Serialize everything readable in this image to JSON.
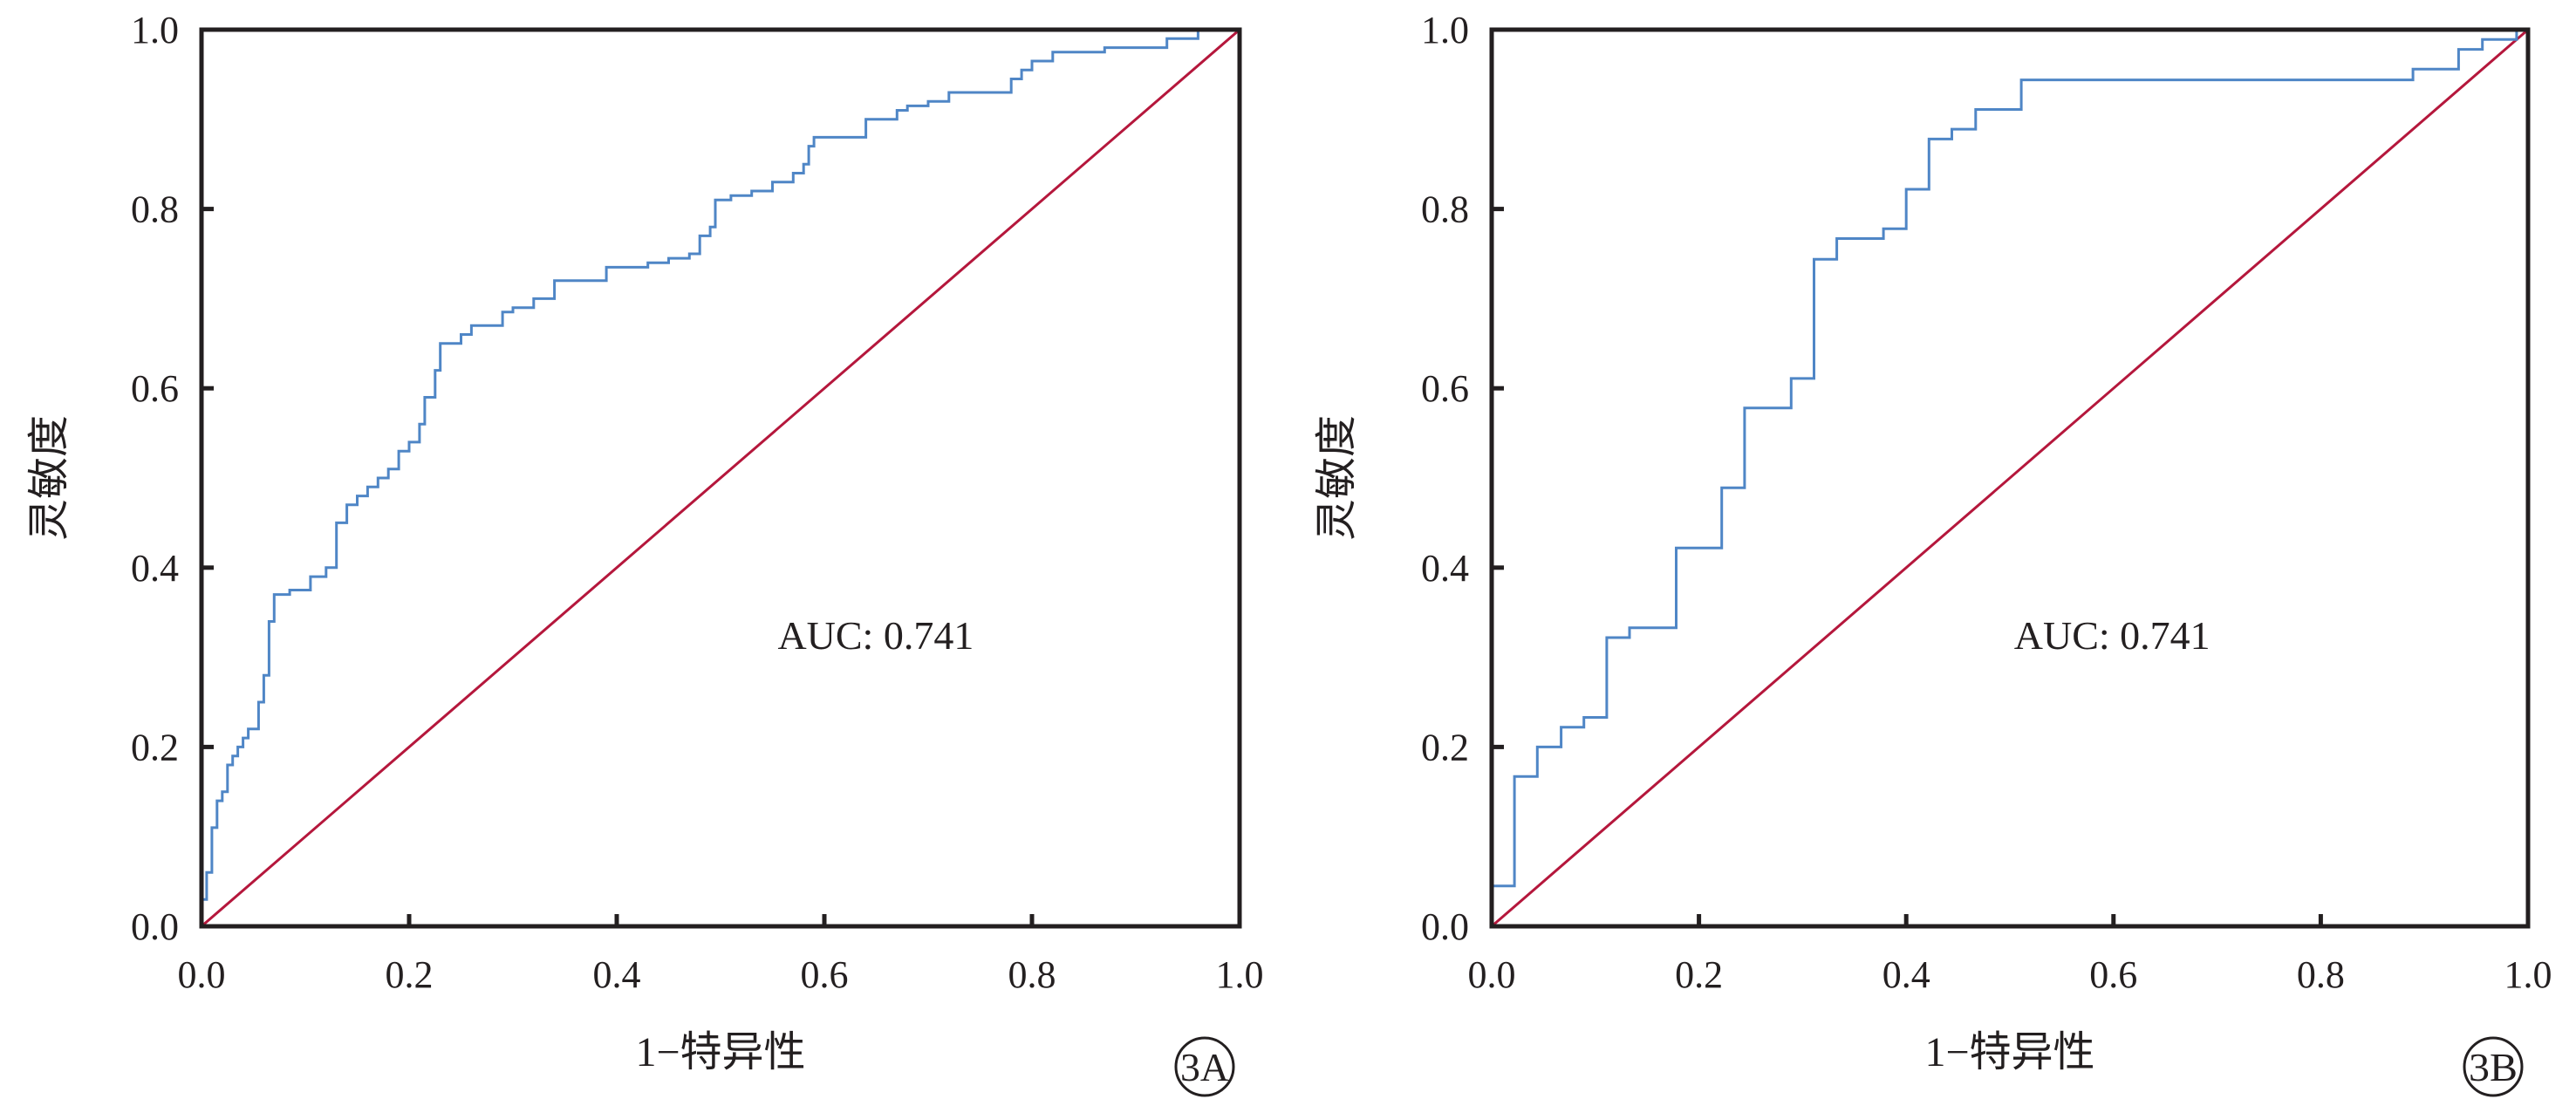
{
  "chart_data": [
    {
      "type": "line",
      "panel": "3A",
      "xlabel": "1−特异性",
      "ylabel": "灵敏度",
      "xlim": [
        0.0,
        1.0
      ],
      "ylim": [
        0.0,
        1.0
      ],
      "xticks": [
        "0.0",
        "0.2",
        "0.4",
        "0.6",
        "0.8",
        "1.0"
      ],
      "yticks": [
        "0.0",
        "0.2",
        "0.4",
        "0.6",
        "0.8",
        "1.0"
      ],
      "annotation": "AUC: 0.741",
      "grid": false,
      "colors": {
        "roc": "#4f86c6",
        "reference": "#b5173c",
        "frame": "#231f20"
      },
      "series": [
        {
          "role": "roc",
          "step": true,
          "points": [
            [
              0.0,
              0.0
            ],
            [
              0.0,
              0.03
            ],
            [
              0.005,
              0.03
            ],
            [
              0.005,
              0.06
            ],
            [
              0.01,
              0.06
            ],
            [
              0.01,
              0.11
            ],
            [
              0.015,
              0.11
            ],
            [
              0.015,
              0.14
            ],
            [
              0.02,
              0.14
            ],
            [
              0.02,
              0.15
            ],
            [
              0.025,
              0.15
            ],
            [
              0.025,
              0.18
            ],
            [
              0.03,
              0.18
            ],
            [
              0.03,
              0.19
            ],
            [
              0.035,
              0.19
            ],
            [
              0.035,
              0.2
            ],
            [
              0.04,
              0.2
            ],
            [
              0.04,
              0.21
            ],
            [
              0.045,
              0.21
            ],
            [
              0.045,
              0.22
            ],
            [
              0.055,
              0.22
            ],
            [
              0.055,
              0.25
            ],
            [
              0.06,
              0.25
            ],
            [
              0.06,
              0.28
            ],
            [
              0.065,
              0.28
            ],
            [
              0.065,
              0.34
            ],
            [
              0.07,
              0.34
            ],
            [
              0.07,
              0.37
            ],
            [
              0.085,
              0.37
            ],
            [
              0.085,
              0.375
            ],
            [
              0.105,
              0.375
            ],
            [
              0.105,
              0.39
            ],
            [
              0.12,
              0.39
            ],
            [
              0.12,
              0.4
            ],
            [
              0.13,
              0.4
            ],
            [
              0.13,
              0.45
            ],
            [
              0.14,
              0.45
            ],
            [
              0.14,
              0.47
            ],
            [
              0.15,
              0.47
            ],
            [
              0.15,
              0.48
            ],
            [
              0.16,
              0.48
            ],
            [
              0.16,
              0.49
            ],
            [
              0.17,
              0.49
            ],
            [
              0.17,
              0.5
            ],
            [
              0.18,
              0.5
            ],
            [
              0.18,
              0.51
            ],
            [
              0.19,
              0.51
            ],
            [
              0.19,
              0.53
            ],
            [
              0.2,
              0.53
            ],
            [
              0.2,
              0.54
            ],
            [
              0.21,
              0.54
            ],
            [
              0.21,
              0.56
            ],
            [
              0.215,
              0.56
            ],
            [
              0.215,
              0.59
            ],
            [
              0.225,
              0.59
            ],
            [
              0.225,
              0.62
            ],
            [
              0.23,
              0.62
            ],
            [
              0.23,
              0.65
            ],
            [
              0.25,
              0.65
            ],
            [
              0.25,
              0.66
            ],
            [
              0.26,
              0.66
            ],
            [
              0.26,
              0.67
            ],
            [
              0.29,
              0.67
            ],
            [
              0.29,
              0.685
            ],
            [
              0.3,
              0.685
            ],
            [
              0.3,
              0.69
            ],
            [
              0.32,
              0.69
            ],
            [
              0.32,
              0.7
            ],
            [
              0.34,
              0.7
            ],
            [
              0.34,
              0.72
            ],
            [
              0.39,
              0.72
            ],
            [
              0.39,
              0.735
            ],
            [
              0.43,
              0.735
            ],
            [
              0.43,
              0.74
            ],
            [
              0.45,
              0.74
            ],
            [
              0.45,
              0.745
            ],
            [
              0.47,
              0.745
            ],
            [
              0.47,
              0.75
            ],
            [
              0.48,
              0.75
            ],
            [
              0.48,
              0.77
            ],
            [
              0.49,
              0.77
            ],
            [
              0.49,
              0.78
            ],
            [
              0.495,
              0.78
            ],
            [
              0.495,
              0.81
            ],
            [
              0.51,
              0.81
            ],
            [
              0.51,
              0.815
            ],
            [
              0.53,
              0.815
            ],
            [
              0.53,
              0.82
            ],
            [
              0.55,
              0.82
            ],
            [
              0.55,
              0.83
            ],
            [
              0.57,
              0.83
            ],
            [
              0.57,
              0.84
            ],
            [
              0.58,
              0.84
            ],
            [
              0.58,
              0.85
            ],
            [
              0.585,
              0.85
            ],
            [
              0.585,
              0.87
            ],
            [
              0.59,
              0.87
            ],
            [
              0.59,
              0.88
            ],
            [
              0.64,
              0.88
            ],
            [
              0.64,
              0.9
            ],
            [
              0.67,
              0.9
            ],
            [
              0.67,
              0.91
            ],
            [
              0.68,
              0.91
            ],
            [
              0.68,
              0.915
            ],
            [
              0.7,
              0.915
            ],
            [
              0.7,
              0.92
            ],
            [
              0.72,
              0.92
            ],
            [
              0.72,
              0.93
            ],
            [
              0.78,
              0.93
            ],
            [
              0.78,
              0.945
            ],
            [
              0.79,
              0.945
            ],
            [
              0.79,
              0.955
            ],
            [
              0.8,
              0.955
            ],
            [
              0.8,
              0.965
            ],
            [
              0.82,
              0.965
            ],
            [
              0.82,
              0.975
            ],
            [
              0.87,
              0.975
            ],
            [
              0.87,
              0.98
            ],
            [
              0.93,
              0.98
            ],
            [
              0.93,
              0.99
            ],
            [
              0.96,
              0.99
            ],
            [
              0.96,
              1.0
            ],
            [
              1.0,
              1.0
            ]
          ]
        },
        {
          "role": "reference",
          "points": [
            [
              0.0,
              0.0
            ],
            [
              1.0,
              1.0
            ]
          ]
        }
      ]
    },
    {
      "type": "line",
      "panel": "3B",
      "xlabel": "1−特异性",
      "ylabel": "灵敏度",
      "xlim": [
        0.0,
        1.0
      ],
      "ylim": [
        0.0,
        1.0
      ],
      "xticks": [
        "0.0",
        "0.2",
        "0.4",
        "0.6",
        "0.8",
        "1.0"
      ],
      "yticks": [
        "0.0",
        "0.2",
        "0.4",
        "0.6",
        "0.8",
        "1.0"
      ],
      "annotation": "AUC: 0.741",
      "grid": false,
      "colors": {
        "roc": "#4f86c6",
        "reference": "#b5173c",
        "frame": "#231f20"
      },
      "series": [
        {
          "role": "roc",
          "step": true,
          "points": [
            [
              0.0,
              0.0
            ],
            [
              0.0,
              0.045
            ],
            [
              0.022,
              0.045
            ],
            [
              0.022,
              0.167
            ],
            [
              0.044,
              0.167
            ],
            [
              0.044,
              0.2
            ],
            [
              0.067,
              0.2
            ],
            [
              0.067,
              0.222
            ],
            [
              0.089,
              0.222
            ],
            [
              0.089,
              0.233
            ],
            [
              0.111,
              0.233
            ],
            [
              0.111,
              0.322
            ],
            [
              0.133,
              0.322
            ],
            [
              0.133,
              0.333
            ],
            [
              0.178,
              0.333
            ],
            [
              0.178,
              0.422
            ],
            [
              0.222,
              0.422
            ],
            [
              0.222,
              0.489
            ],
            [
              0.244,
              0.489
            ],
            [
              0.244,
              0.578
            ],
            [
              0.289,
              0.578
            ],
            [
              0.289,
              0.611
            ],
            [
              0.311,
              0.611
            ],
            [
              0.311,
              0.744
            ],
            [
              0.333,
              0.744
            ],
            [
              0.333,
              0.767
            ],
            [
              0.378,
              0.767
            ],
            [
              0.378,
              0.778
            ],
            [
              0.4,
              0.778
            ],
            [
              0.4,
              0.822
            ],
            [
              0.422,
              0.822
            ],
            [
              0.422,
              0.878
            ],
            [
              0.444,
              0.878
            ],
            [
              0.444,
              0.889
            ],
            [
              0.467,
              0.889
            ],
            [
              0.467,
              0.911
            ],
            [
              0.511,
              0.911
            ],
            [
              0.511,
              0.944
            ],
            [
              0.889,
              0.944
            ],
            [
              0.889,
              0.956
            ],
            [
              0.933,
              0.956
            ],
            [
              0.933,
              0.978
            ],
            [
              0.956,
              0.978
            ],
            [
              0.956,
              0.989
            ],
            [
              0.989,
              0.989
            ],
            [
              0.989,
              1.0
            ],
            [
              1.0,
              1.0
            ]
          ]
        },
        {
          "role": "reference",
          "points": [
            [
              0.0,
              0.0
            ],
            [
              1.0,
              1.0
            ]
          ]
        }
      ]
    }
  ]
}
